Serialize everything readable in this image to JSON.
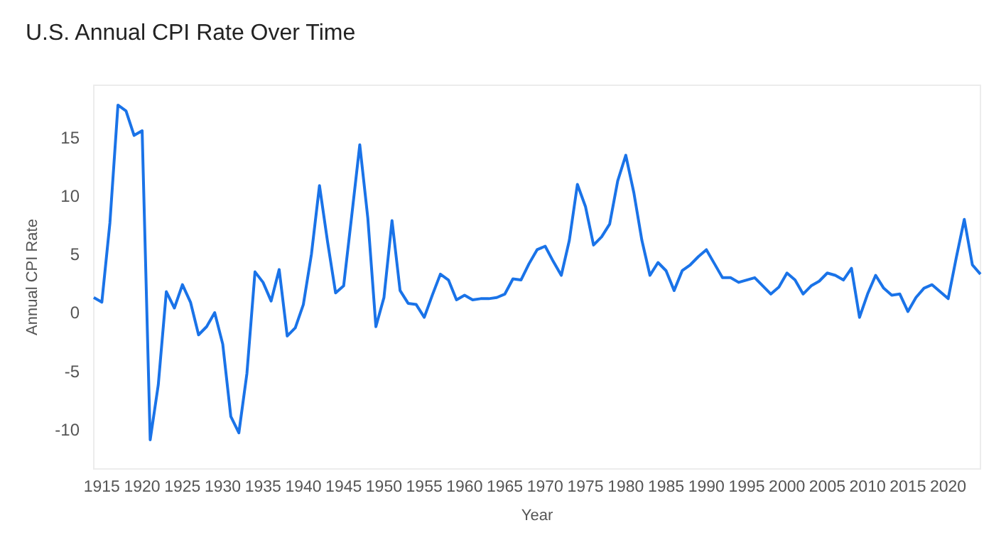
{
  "chart_data": {
    "type": "line",
    "title": "U.S. Annual CPI Rate Over Time",
    "xlabel": "Year",
    "ylabel": "Annual CPI Rate",
    "x": [
      1914,
      1915,
      1916,
      1917,
      1918,
      1919,
      1920,
      1921,
      1922,
      1923,
      1924,
      1925,
      1926,
      1927,
      1928,
      1929,
      1930,
      1931,
      1932,
      1933,
      1934,
      1935,
      1936,
      1937,
      1938,
      1939,
      1940,
      1941,
      1942,
      1943,
      1944,
      1945,
      1946,
      1947,
      1948,
      1949,
      1950,
      1951,
      1952,
      1953,
      1954,
      1955,
      1956,
      1957,
      1958,
      1959,
      1960,
      1961,
      1962,
      1963,
      1964,
      1965,
      1966,
      1967,
      1968,
      1969,
      1970,
      1971,
      1972,
      1973,
      1974,
      1975,
      1976,
      1977,
      1978,
      1979,
      1980,
      1981,
      1982,
      1983,
      1984,
      1985,
      1986,
      1987,
      1988,
      1989,
      1990,
      1991,
      1992,
      1993,
      1994,
      1995,
      1996,
      1997,
      1998,
      1999,
      2000,
      2001,
      2002,
      2003,
      2004,
      2005,
      2006,
      2007,
      2008,
      2009,
      2010,
      2011,
      2012,
      2013,
      2014,
      2015,
      2016,
      2017,
      2018,
      2019,
      2020,
      2021,
      2022,
      2023,
      2024
    ],
    "series": [
      {
        "color": "#1a73e8",
        "values": [
          1.3,
          0.9,
          7.7,
          17.8,
          17.3,
          15.2,
          15.6,
          -10.9,
          -6.2,
          1.8,
          0.4,
          2.4,
          0.9,
          -1.9,
          -1.2,
          0.0,
          -2.7,
          -8.9,
          -10.3,
          -5.2,
          3.5,
          2.6,
          1.0,
          3.7,
          -2.0,
          -1.3,
          0.7,
          5.0,
          10.9,
          6.1,
          1.7,
          2.3,
          8.3,
          14.4,
          8.1,
          -1.2,
          1.3,
          7.9,
          1.9,
          0.8,
          0.7,
          -0.4,
          1.5,
          3.3,
          2.8,
          1.1,
          1.5,
          1.1,
          1.2,
          1.2,
          1.3,
          1.6,
          2.9,
          2.8,
          4.2,
          5.4,
          5.7,
          4.4,
          3.2,
          6.2,
          11.0,
          9.1,
          5.8,
          6.5,
          7.6,
          11.3,
          13.5,
          10.3,
          6.2,
          3.2,
          4.3,
          3.6,
          1.9,
          3.6,
          4.1,
          4.8,
          5.4,
          4.2,
          3.0,
          3.0,
          2.6,
          2.8,
          3.0,
          2.3,
          1.6,
          2.2,
          3.4,
          2.8,
          1.6,
          2.3,
          2.7,
          3.4,
          3.2,
          2.8,
          3.8,
          -0.4,
          1.6,
          3.2,
          2.1,
          1.5,
          1.6,
          0.1,
          1.3,
          2.1,
          2.4,
          1.8,
          1.2,
          4.7,
          8.0,
          4.1,
          3.3
        ]
      }
    ],
    "xlim": [
      1914,
      2024
    ],
    "xticks": [
      1915,
      1920,
      1925,
      1930,
      1935,
      1940,
      1945,
      1950,
      1955,
      1960,
      1965,
      1970,
      1975,
      1980,
      1985,
      1990,
      1995,
      2000,
      2005,
      2010,
      2015,
      2020
    ],
    "ylim": [
      -13.4,
      19.5
    ],
    "yticks": [
      -10,
      -5,
      0,
      5,
      10,
      15
    ],
    "grid": false,
    "marker": "none",
    "line_style": "solid"
  }
}
